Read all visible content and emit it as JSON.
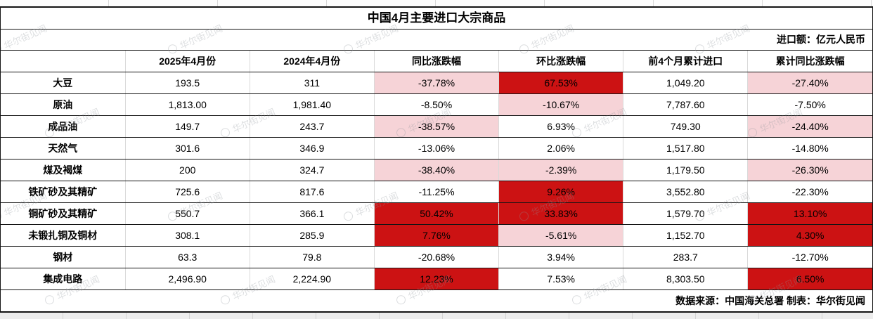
{
  "title": "中国4月主要进口大宗商品",
  "unit_note": "进口额：亿元人民币",
  "footer_note": "数据来源：中国海关总署 制表：华尔街见闻",
  "watermark_text": "华尔街见闻",
  "colors": {
    "highlight_red": "#cc1213",
    "highlight_pink": "#f6d3d7",
    "border_dark": "#141414",
    "border_light": "#d9d9d9"
  },
  "chart_data": {
    "type": "table",
    "title": "中国4月主要进口大宗商品",
    "unit": "进口额：亿元人民币",
    "columns": [
      "",
      "2025年4月份",
      "2024年4月份",
      "同比涨跌幅",
      "环比涨跌幅",
      "前4个月累计进口",
      "累计同比涨跌幅"
    ],
    "rows": [
      {
        "name": "大豆",
        "v2025": "193.5",
        "v2024": "311",
        "yoy": "-37.78%",
        "yoy_bg": "pink",
        "mom": "67.53%",
        "mom_bg": "red",
        "cum": "1,049.20",
        "cum_yoy": "-27.40%",
        "cum_yoy_bg": "pink"
      },
      {
        "name": "原油",
        "v2025": "1,813.00",
        "v2024": "1,981.40",
        "yoy": "-8.50%",
        "yoy_bg": "white",
        "mom": "-10.67%",
        "mom_bg": "pink",
        "cum": "7,787.60",
        "cum_yoy": "-7.50%",
        "cum_yoy_bg": "white"
      },
      {
        "name": "成品油",
        "v2025": "149.7",
        "v2024": "243.7",
        "yoy": "-38.57%",
        "yoy_bg": "pink",
        "mom": "6.93%",
        "mom_bg": "white",
        "cum": "749.30",
        "cum_yoy": "-24.40%",
        "cum_yoy_bg": "pink"
      },
      {
        "name": "天然气",
        "v2025": "301.6",
        "v2024": "346.9",
        "yoy": "-13.06%",
        "yoy_bg": "white",
        "mom": "2.06%",
        "mom_bg": "white",
        "cum": "1,517.80",
        "cum_yoy": "-14.80%",
        "cum_yoy_bg": "white"
      },
      {
        "name": "煤及褐煤",
        "v2025": "200",
        "v2024": "324.7",
        "yoy": "-38.40%",
        "yoy_bg": "pink",
        "mom": "-2.39%",
        "mom_bg": "pink",
        "cum": "1,179.50",
        "cum_yoy": "-26.30%",
        "cum_yoy_bg": "pink"
      },
      {
        "name": "铁矿砂及其精矿",
        "v2025": "725.6",
        "v2024": "817.6",
        "yoy": "-11.25%",
        "yoy_bg": "white",
        "mom": "9.26%",
        "mom_bg": "red",
        "cum": "3,552.80",
        "cum_yoy": "-22.30%",
        "cum_yoy_bg": "white"
      },
      {
        "name": "铜矿砂及其精矿",
        "v2025": "550.7",
        "v2024": "366.1",
        "yoy": "50.42%",
        "yoy_bg": "red",
        "mom": "33.83%",
        "mom_bg": "red",
        "cum": "1,579.70",
        "cum_yoy": "13.10%",
        "cum_yoy_bg": "red"
      },
      {
        "name": "未锻扎铜及铜材",
        "v2025": "308.1",
        "v2024": "285.9",
        "yoy": "7.76%",
        "yoy_bg": "red",
        "mom": "-5.61%",
        "mom_bg": "pink",
        "cum": "1,152.70",
        "cum_yoy": "4.30%",
        "cum_yoy_bg": "red"
      },
      {
        "name": "钢材",
        "v2025": "63.3",
        "v2024": "79.8",
        "yoy": "-20.68%",
        "yoy_bg": "white",
        "mom": "3.94%",
        "mom_bg": "white",
        "cum": "283.7",
        "cum_yoy": "-12.70%",
        "cum_yoy_bg": "white"
      },
      {
        "name": "集成电路",
        "v2025": "2,496.90",
        "v2024": "2,224.90",
        "yoy": "12.23%",
        "yoy_bg": "red",
        "mom": "7.53%",
        "mom_bg": "white",
        "cum": "8,303.50",
        "cum_yoy": "6.50%",
        "cum_yoy_bg": "red"
      }
    ],
    "legend": "pink = highlighted decline cell, red = highlighted gain cell, white = no highlight",
    "source": "数据来源：中国海关总署 制表：华尔街见闻"
  }
}
